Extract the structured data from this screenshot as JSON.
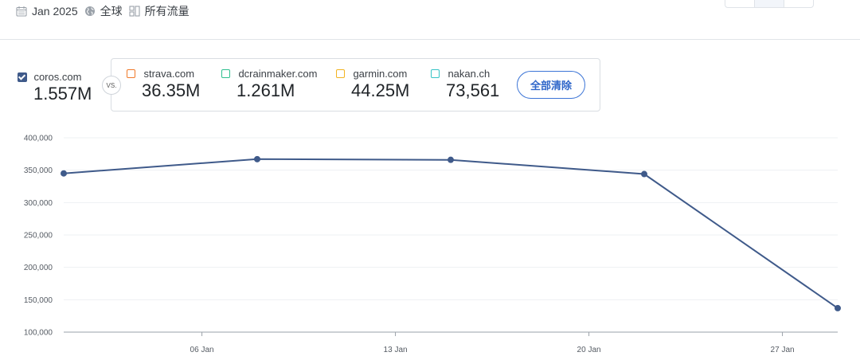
{
  "filters": {
    "date": "Jan 2025",
    "region": "全球",
    "traffic": "所有流量"
  },
  "main_site": {
    "name": "coros.com",
    "value": "1.557M",
    "color": "#3f5a8a"
  },
  "vs_label": "VS.",
  "competitors": [
    {
      "name": "strava.com",
      "value": "36.35M",
      "color": "#f07a2a"
    },
    {
      "name": "dcrainmaker.com",
      "value": "1.261M",
      "color": "#2fbf8f"
    },
    {
      "name": "garmin.com",
      "value": "44.25M",
      "color": "#f2b321"
    },
    {
      "name": "nakan.ch",
      "value": "73,561",
      "color": "#36c3c6"
    }
  ],
  "clear_all_label": "全部清除",
  "chart_data": {
    "type": "line",
    "series": [
      {
        "name": "coros.com",
        "color": "#3f5a8a",
        "points": [
          {
            "x": "2025-01-01",
            "y": 345000
          },
          {
            "x": "2025-01-08",
            "y": 367000
          },
          {
            "x": "2025-01-15",
            "y": 366000
          },
          {
            "x": "2025-01-22",
            "y": 344000
          },
          {
            "x": "2025-01-29",
            "y": 137000
          }
        ]
      }
    ],
    "x_range": [
      "2025-01-01",
      "2025-01-29"
    ],
    "ylim": [
      100000,
      400000
    ],
    "y_ticks": [
      "400,000",
      "350,000",
      "300,000",
      "250,000",
      "200,000",
      "150,000",
      "100,000"
    ],
    "y_tick_values": [
      400000,
      350000,
      300000,
      250000,
      200000,
      150000,
      100000
    ],
    "x_ticks": [
      "06 Jan",
      "13 Jan",
      "20 Jan",
      "27 Jan"
    ],
    "x_tick_dates": [
      "2025-01-06",
      "2025-01-13",
      "2025-01-20",
      "2025-01-27"
    ],
    "grid": true
  }
}
